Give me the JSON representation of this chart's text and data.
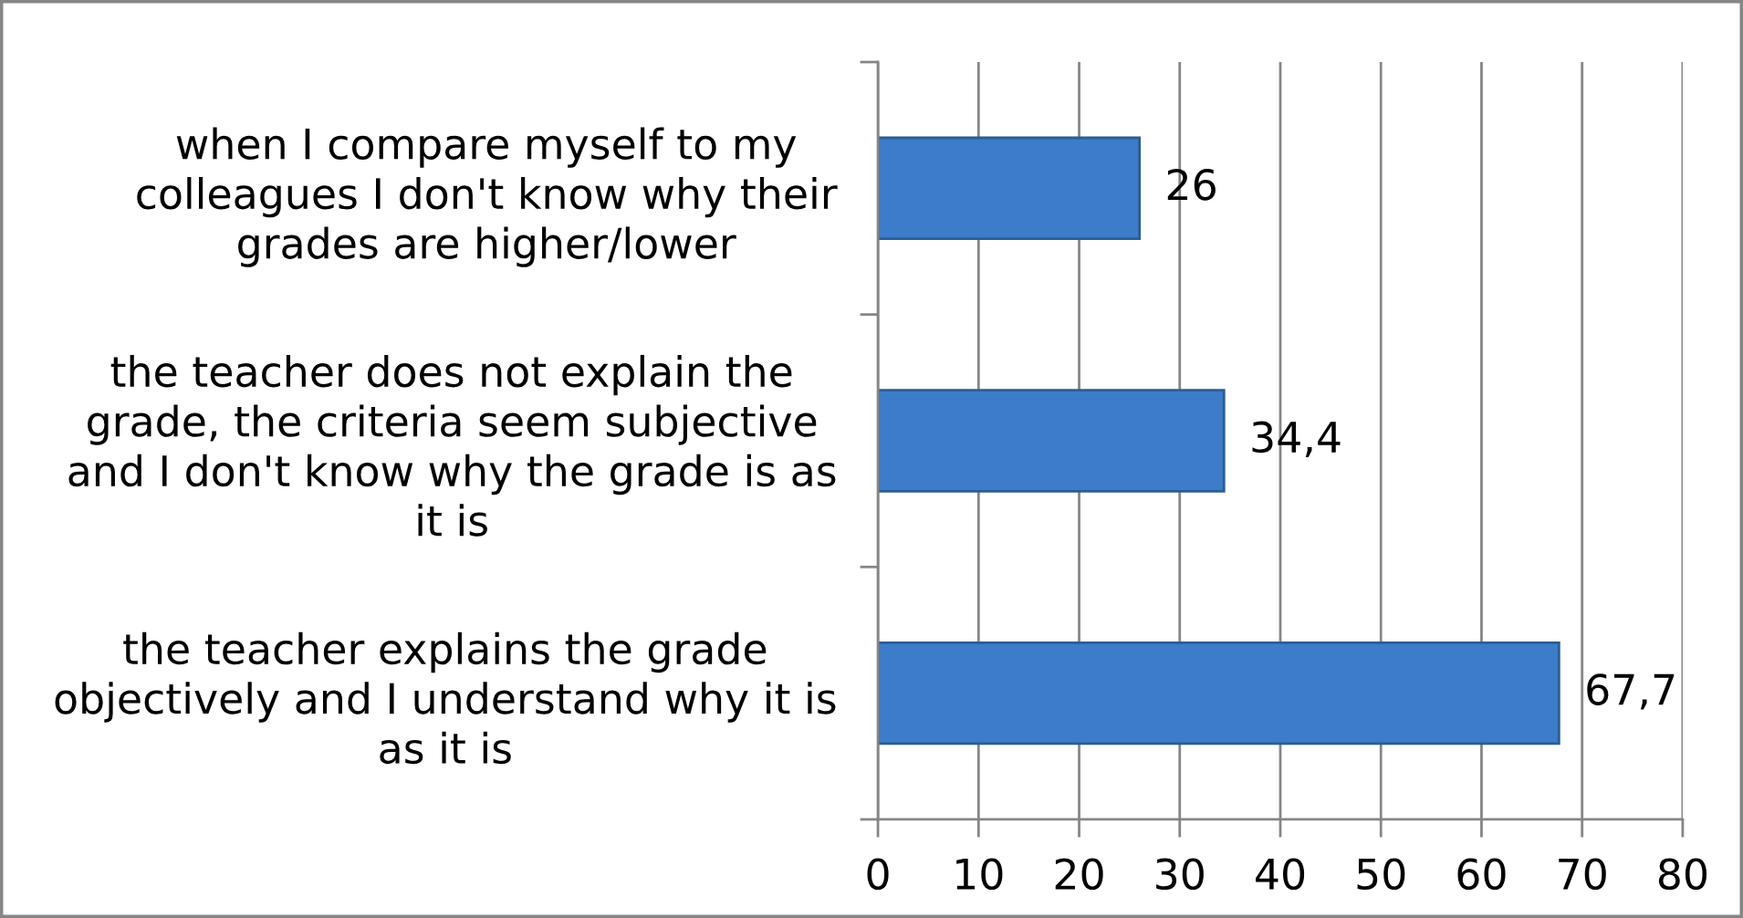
{
  "chart_data": {
    "type": "bar",
    "orientation": "horizontal",
    "categories": [
      "when I compare myself to my\ncolleagues I don't know why their\ngrades are higher/lower",
      "the teacher does not explain the\ngrade, the criteria seem subjective\nand I don't know why the grade is as\nit is",
      "the teacher explains the grade\nobjectively and I understand why it is\nas it is"
    ],
    "values": [
      26,
      34.4,
      67.7
    ],
    "value_labels": [
      "26",
      "34,4",
      "67,7"
    ],
    "color": "#3d7cc9",
    "xlim": [
      0,
      80
    ],
    "xticks": [
      0,
      10,
      20,
      30,
      40,
      50,
      60,
      70,
      80
    ],
    "grid": "x"
  }
}
